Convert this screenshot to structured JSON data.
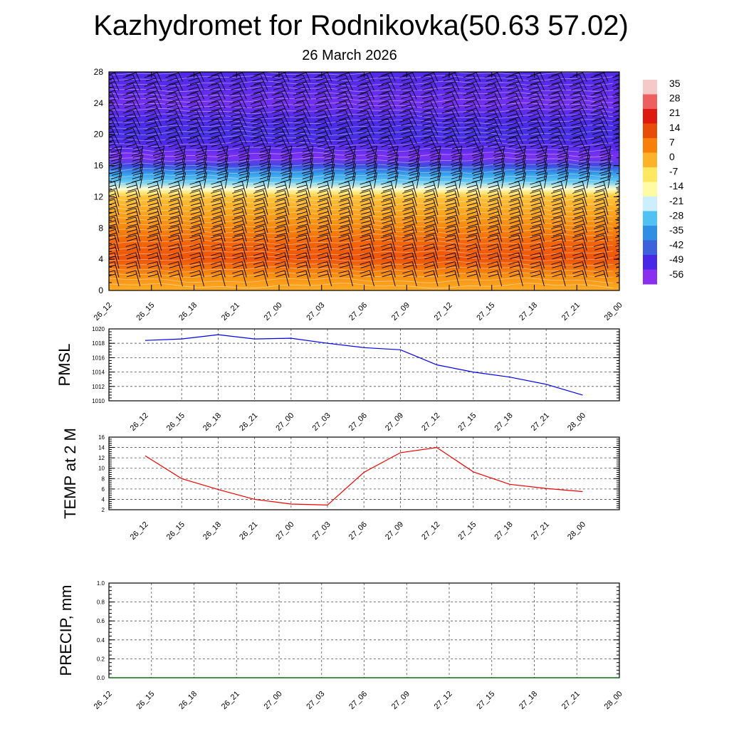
{
  "title": "Kazhydromet for Rodnikovka(50.63 57.02)",
  "subtitle": "26 March 2026",
  "time_labels": [
    "26_12",
    "26_15",
    "26_18",
    "26_21",
    "27_00",
    "27_03",
    "27_06",
    "27_09",
    "27_12",
    "27_15",
    "27_18",
    "27_21",
    "28_00"
  ],
  "colorbar": {
    "labels": [
      "35",
      "28",
      "21",
      "14",
      "7",
      "0",
      "-7",
      "-14",
      "-21",
      "-28",
      "-35",
      "-42",
      "-49",
      "-56"
    ],
    "colors": [
      "#f6c9c9",
      "#ee6060",
      "#dc1a10",
      "#e84c0a",
      "#f6800a",
      "#fdb22a",
      "#fee860",
      "#fefba4",
      "#cdeefc",
      "#4fc1f2",
      "#2e8fe4",
      "#3b62da",
      "#4828e6",
      "#8a2ff0"
    ]
  },
  "chart_data": [
    {
      "type": "heatmap",
      "name": "temperature-profile",
      "x": [
        "26_12",
        "26_15",
        "26_18",
        "26_21",
        "27_00",
        "27_03",
        "27_06",
        "27_09",
        "27_12",
        "27_15",
        "27_18",
        "27_21",
        "28_00"
      ],
      "ylim": [
        0,
        28
      ],
      "yticks": [
        "0",
        "4",
        "8",
        "12",
        "16",
        "20",
        "24",
        "28"
      ],
      "levels_y": [
        0,
        2,
        4,
        6,
        8,
        10,
        12,
        12.5,
        13,
        14,
        15,
        16,
        17,
        17.5,
        18,
        19,
        20,
        22,
        24,
        26,
        28
      ],
      "levels_t": [
        5,
        10,
        17,
        15,
        11,
        6,
        2,
        -4,
        -12,
        -20,
        -32,
        -45,
        -56,
        -55,
        -52,
        -50,
        -48,
        -50,
        -55,
        -52,
        -50
      ],
      "wind_barbs": true
    },
    {
      "type": "line",
      "name": "PMSL",
      "ylabel": "PMSL",
      "x": [
        "26_12",
        "26_15",
        "26_18",
        "26_21",
        "27_00",
        "27_03",
        "27_06",
        "27_09",
        "27_12",
        "27_15",
        "27_18",
        "27_21",
        "28_00"
      ],
      "values": [
        1018.4,
        1018.6,
        1019.2,
        1018.6,
        1018.7,
        1018.0,
        1017.4,
        1017.1,
        1015.0,
        1014.0,
        1013.3,
        1012.3,
        1010.8
      ],
      "ylim": [
        1010,
        1020
      ],
      "yticks": [
        "1010",
        "1012",
        "1014",
        "1016",
        "1018",
        "1020"
      ],
      "color": "#0000ee",
      "grid": true
    },
    {
      "type": "line",
      "name": "TEMP at 2 M",
      "ylabel": "TEMP at 2 M",
      "x": [
        "26_12",
        "26_15",
        "26_18",
        "26_21",
        "27_00",
        "27_03",
        "27_06",
        "27_09",
        "27_12",
        "27_15",
        "27_18",
        "27_21",
        "28_00"
      ],
      "values": [
        12.4,
        8.0,
        5.9,
        4.0,
        3.1,
        2.9,
        9.2,
        13.0,
        14.0,
        9.3,
        6.9,
        6.1,
        5.5
      ],
      "ylim": [
        2,
        16
      ],
      "yticks": [
        "2",
        "4",
        "6",
        "8",
        "10",
        "12",
        "14",
        "16"
      ],
      "color": "#ee0000",
      "grid": true
    },
    {
      "type": "line",
      "name": "PRECIP, mm",
      "ylabel": "PRECIP, mm",
      "x": [
        "26_12",
        "26_15",
        "26_18",
        "26_21",
        "27_00",
        "27_03",
        "27_06",
        "27_09",
        "27_12",
        "27_15",
        "27_18",
        "27_21",
        "28_00"
      ],
      "values": [
        0,
        0,
        0,
        0,
        0,
        0,
        0,
        0,
        0,
        0,
        0,
        0,
        0
      ],
      "ylim": [
        0,
        1.0
      ],
      "yticks": [
        "0.0",
        "0.2",
        "0.4",
        "0.6",
        "0.8",
        "1.0"
      ],
      "color": "#006400",
      "grid": true
    }
  ]
}
